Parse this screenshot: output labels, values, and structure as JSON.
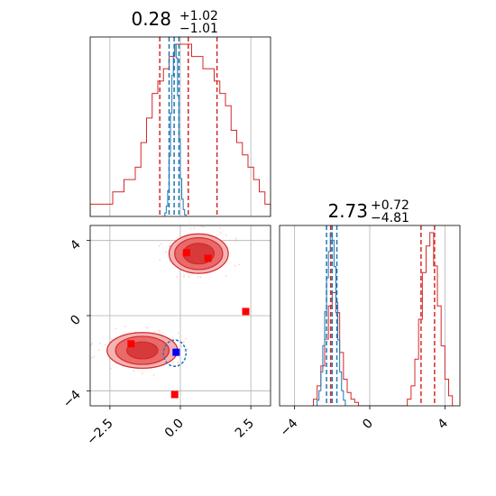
{
  "colors": {
    "red": "#d62728",
    "blue": "#1f77b4",
    "marker_red": "#ff0000",
    "marker_blue": "#0000ff",
    "grid": "#b0b0b0"
  },
  "chart_data": [
    {
      "type": "histogram",
      "panel": "marginal-x",
      "title": {
        "value": "0.28",
        "plus": "+1.02",
        "minus": "−1.01"
      },
      "xlim": [
        -3.2,
        3.2
      ],
      "grid": true,
      "series": [
        {
          "color": "red",
          "bins": [
            -3.2,
            -3.0,
            -2.8,
            -2.6,
            -2.4,
            -2.2,
            -2.0,
            -1.8,
            -1.6,
            -1.4,
            -1.2,
            -1.0,
            -0.8,
            -0.6,
            -0.4,
            -0.2,
            0.0,
            0.2,
            0.4,
            0.6,
            0.8,
            1.0,
            1.2,
            1.4,
            1.6,
            1.8,
            2.0,
            2.2,
            2.4,
            2.6,
            2.8,
            3.0,
            3.2
          ],
          "counts": [
            0.01,
            0.01,
            0.01,
            0.01,
            0.02,
            0.02,
            0.03,
            0.03,
            0.04,
            0.06,
            0.08,
            0.1,
            0.11,
            0.12,
            0.13,
            0.14,
            0.14,
            0.14,
            0.13,
            0.13,
            0.12,
            0.12,
            0.11,
            0.1,
            0.09,
            0.07,
            0.06,
            0.05,
            0.04,
            0.03,
            0.02,
            0.01
          ],
          "quantile_lines": [
            -0.73,
            0.28,
            1.3
          ]
        },
        {
          "color": "blue",
          "bins": [
            -0.55,
            -0.5,
            -0.45,
            -0.4,
            -0.35,
            -0.3,
            -0.25,
            -0.2,
            -0.15,
            -0.1,
            -0.05,
            0.0,
            0.05,
            0.1,
            0.15,
            0.2
          ],
          "counts": [
            0.02,
            0.06,
            0.15,
            0.35,
            0.6,
            0.82,
            0.95,
            1.0,
            0.92,
            0.7,
            0.45,
            0.22,
            0.1,
            0.04,
            0.01
          ],
          "quantile_lines": [
            -0.4,
            -0.22,
            -0.05
          ]
        }
      ]
    },
    {
      "type": "histogram",
      "panel": "marginal-y",
      "title": {
        "value": "2.73",
        "plus": "+0.72",
        "minus": "−4.81"
      },
      "xlim": [
        -4.8,
        4.8
      ],
      "xticks": [
        -4,
        0,
        4
      ],
      "xticklabels": [
        "−4",
        "0",
        "4"
      ],
      "grid": true,
      "series": [
        {
          "color": "red",
          "bins": [
            -3.0,
            -2.8,
            -2.6,
            -2.4,
            -2.2,
            -2.0,
            -1.8,
            -1.6,
            -1.4,
            -1.2,
            -1.0,
            -0.8,
            -0.6,
            2.0,
            2.2,
            2.4,
            2.6,
            2.8,
            3.0,
            3.2,
            3.4,
            3.6,
            3.8,
            4.0,
            4.2,
            4.4
          ],
          "counts": [
            0.02,
            0.06,
            0.12,
            0.2,
            0.3,
            0.34,
            0.28,
            0.16,
            0.08,
            0.04,
            0.02,
            0.01,
            0.0,
            0.02,
            0.06,
            0.14,
            0.26,
            0.4,
            0.48,
            0.52,
            0.42,
            0.3,
            0.18,
            0.08,
            0.03
          ],
          "quantile_lines": [
            -2.08,
            2.73,
            3.45
          ]
        },
        {
          "color": "blue",
          "bins": [
            -2.8,
            -2.7,
            -2.6,
            -2.5,
            -2.4,
            -2.3,
            -2.2,
            -2.1,
            -2.0,
            -1.9,
            -1.8,
            -1.7,
            -1.6,
            -1.5,
            -1.4,
            -1.3
          ],
          "counts": [
            0.03,
            0.08,
            0.18,
            0.32,
            0.5,
            0.68,
            0.82,
            0.92,
            0.88,
            0.74,
            0.55,
            0.35,
            0.18,
            0.08,
            0.03
          ],
          "quantile_lines": [
            -2.3,
            -2.0,
            -1.75
          ]
        }
      ]
    },
    {
      "type": "scatter",
      "panel": "joint",
      "xlim": [
        -3.2,
        3.2
      ],
      "ylim": [
        -4.8,
        4.8
      ],
      "xticks": [
        -2.5,
        0.0,
        2.5
      ],
      "xticklabels": [
        "−2.5",
        "0.0",
        "2.5"
      ],
      "yticks": [
        -4,
        0,
        4
      ],
      "yticklabels": [
        "−4",
        "0",
        "4"
      ],
      "grid": true,
      "contours": [
        {
          "color": "red",
          "cx": 0.65,
          "cy": 3.3,
          "rx": [
            1.05,
            0.85,
            0.55
          ],
          "ry": [
            1.05,
            0.85,
            0.55
          ]
        },
        {
          "color": "red",
          "cx": -1.35,
          "cy": -1.85,
          "rx": [
            1.25,
            0.95,
            0.55
          ],
          "ry": [
            0.95,
            0.75,
            0.45
          ]
        },
        {
          "color": "blue",
          "cx": -0.2,
          "cy": -2.0,
          "rx": [
            0.4
          ],
          "ry": [
            0.7
          ]
        }
      ],
      "markers": [
        {
          "x": 0.22,
          "y": 3.35,
          "color": "marker_red"
        },
        {
          "x": 0.98,
          "y": 3.05,
          "color": "marker_red"
        },
        {
          "x": 2.32,
          "y": 0.22,
          "color": "marker_red"
        },
        {
          "x": -1.75,
          "y": -1.5,
          "color": "marker_red"
        },
        {
          "x": -0.2,
          "y": -4.2,
          "color": "marker_red"
        },
        {
          "x": -0.15,
          "y": -1.95,
          "color": "marker_blue"
        }
      ]
    }
  ]
}
